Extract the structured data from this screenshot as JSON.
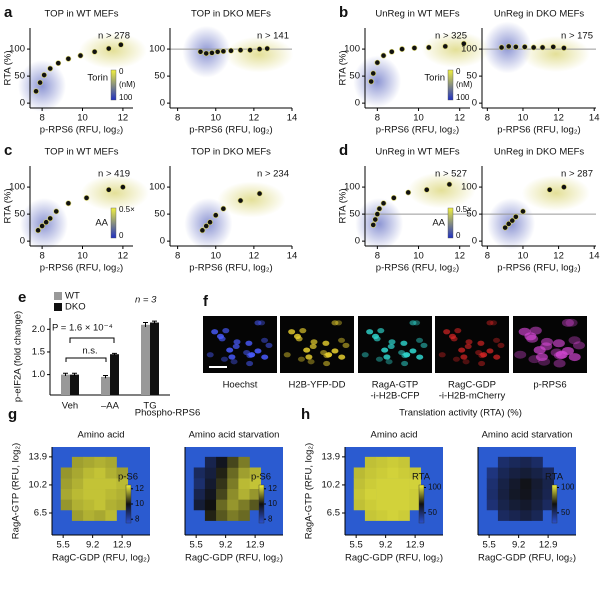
{
  "chart_data": [
    {
      "type": "scatter",
      "panel_label": "a",
      "title": "TOP in WT MEFs",
      "xlabel": "p-RPS6 (RFU, log₂)",
      "ylabel": "RTA (%)",
      "annotation": "n > 278",
      "x": [
        7.7,
        7.9,
        8.1,
        8.4,
        8.8,
        9.3,
        9.9,
        10.6,
        11.3,
        11.9
      ],
      "values": [
        22,
        38,
        52,
        64,
        74,
        82,
        88,
        95,
        101,
        108
      ],
      "color": "#111111",
      "xlim": [
        7.4,
        12.5
      ],
      "ylim": [
        -9,
        139
      ],
      "xticks": [
        8,
        10,
        12
      ],
      "yticks": [
        0,
        50,
        100
      ],
      "colorbar": {
        "title": "Torin",
        "labels": [
          "0",
          "(nM)",
          "100"
        ]
      }
    },
    {
      "type": "scatter",
      "title": "TOP in DKO MEFs",
      "xlabel": "p-RPS6 (RFU, log₂)",
      "annotation": "n > 141",
      "x": [
        9.2,
        9.5,
        9.8,
        10.1,
        10.4,
        10.8,
        11.3,
        11.8,
        12.3,
        12.7
      ],
      "values": [
        95,
        92,
        93,
        95,
        96,
        97,
        98,
        98,
        100,
        101
      ],
      "color": "#111111",
      "xlim": [
        7.6,
        14
      ],
      "ylim": [
        -9,
        139
      ],
      "xticks": [
        8,
        10,
        12,
        14
      ],
      "yticks": [
        0,
        50,
        100
      ],
      "hline": 100
    },
    {
      "type": "scatter",
      "panel_label": "b",
      "title": "UnReg in WT MEFs",
      "xlabel": "p-RPS6 (RFU, log₂)",
      "ylabel": "RTA (%)",
      "annotation": "n > 325",
      "x": [
        7.7,
        7.8,
        8.0,
        8.3,
        8.7,
        9.2,
        9.8,
        10.5,
        11.3,
        12.2
      ],
      "values": [
        40,
        55,
        75,
        88,
        95,
        100,
        102,
        103,
        105,
        110
      ],
      "color": "#111111",
      "xlim": [
        7.4,
        12.5
      ],
      "ylim": [
        -9,
        139
      ],
      "xticks": [
        8,
        10,
        12
      ],
      "yticks": [
        0,
        50,
        100
      ],
      "colorbar": {
        "title": "Torin",
        "labels": [
          "0",
          "(nM)",
          "100"
        ]
      }
    },
    {
      "type": "scatter",
      "title": "UnReg in DKO MEFs",
      "xlabel": "p-RPS6 (RFU, log₂)",
      "annotation": "n > 175",
      "x": [
        8.8,
        9.2,
        9.6,
        10.1,
        10.6,
        11.1,
        11.7,
        12.3
      ],
      "values": [
        103,
        105,
        104,
        104,
        103,
        103,
        104,
        102
      ],
      "color": "#111111",
      "xlim": [
        7.7,
        14.1
      ],
      "ylim": [
        -9,
        139
      ],
      "xticks": [
        8,
        10,
        12,
        14
      ],
      "yticks": [
        0,
        50,
        100
      ],
      "hline": 100
    },
    {
      "type": "scatter",
      "panel_label": "c",
      "title": "TOP in WT MEFs",
      "xlabel": "p-RPS6 (RFU, log₂)",
      "ylabel": "RTA (%)",
      "annotation": "n > 419",
      "x": [
        7.8,
        8.0,
        8.2,
        8.4,
        8.7,
        9.3,
        10.2,
        11.3,
        12.0
      ],
      "values": [
        20,
        28,
        35,
        42,
        55,
        70,
        80,
        95,
        100
      ],
      "color": "#111111",
      "xlim": [
        7.4,
        12.5
      ],
      "ylim": [
        -9,
        139
      ],
      "xticks": [
        8,
        10,
        12
      ],
      "yticks": [
        0,
        50,
        100
      ],
      "colorbar": {
        "title": "AA",
        "labels": [
          "0.5×",
          "0"
        ]
      }
    },
    {
      "type": "scatter",
      "title": "TOP in DKO MEFs",
      "xlabel": "p-RPS6 (RFU, log₂)",
      "annotation": "n > 234",
      "x": [
        9.3,
        9.5,
        9.7,
        10.0,
        10.4,
        11.3,
        12.3
      ],
      "values": [
        20,
        28,
        35,
        48,
        60,
        75,
        88
      ],
      "color": "#111111",
      "xlim": [
        7.6,
        14
      ],
      "ylim": [
        -9,
        139
      ],
      "xticks": [
        8,
        10,
        12,
        14
      ],
      "yticks": [
        0,
        50,
        100
      ]
    },
    {
      "type": "scatter",
      "panel_label": "d",
      "title": "UnReg in WT MEFs",
      "xlabel": "p-RPS6 (RFU, log₂)",
      "ylabel": "RTA (%)",
      "annotation": "n > 527",
      "x": [
        7.8,
        7.9,
        8.0,
        8.1,
        8.3,
        8.8,
        9.5,
        10.4,
        11.5
      ],
      "values": [
        30,
        40,
        50,
        60,
        70,
        80,
        90,
        95,
        105
      ],
      "color": "#111111",
      "xlim": [
        7.4,
        12.5
      ],
      "ylim": [
        -9,
        139
      ],
      "xticks": [
        8,
        10,
        12
      ],
      "yticks": [
        0,
        50,
        100
      ],
      "hline": 50,
      "colorbar": {
        "title": "AA",
        "labels": [
          "0.5×",
          "0"
        ]
      }
    },
    {
      "type": "scatter",
      "title": "UnReg in DKO MEFs",
      "xlabel": "p-RPS6 (RFU, log₂)",
      "annotation": "n > 287",
      "x": [
        9.0,
        9.2,
        9.4,
        9.6,
        10.0,
        11.5,
        12.3
      ],
      "values": [
        25,
        32,
        38,
        45,
        55,
        95,
        100
      ],
      "color": "#111111",
      "xlim": [
        7.7,
        14.1
      ],
      "ylim": [
        -9,
        139
      ],
      "xticks": [
        8,
        10,
        12,
        14
      ],
      "yticks": [
        0,
        50,
        100
      ],
      "hline": 50
    },
    {
      "type": "bar",
      "panel_label": "e",
      "ylabel": "p-eIF2A (fold change)",
      "annotations": [
        "n = 3",
        "P = 1.6 × 10⁻⁴",
        "n.s."
      ],
      "categories": [
        "Veh",
        "–AA",
        "TG"
      ],
      "series": [
        {
          "name": "WT",
          "color": "#999999",
          "values": [
            1.0,
            0.95,
            2.1
          ],
          "errors": [
            0.03,
            0.03,
            0.05
          ]
        },
        {
          "name": "DKO",
          "color": "#111111",
          "values": [
            1.0,
            1.45,
            2.15
          ],
          "errors": [
            0.03,
            0.02,
            0.03
          ]
        }
      ],
      "ylim": [
        0.55,
        2.25
      ],
      "yticks": [
        {
          "value": 1,
          "label": "1.0"
        },
        {
          "value": 1.5,
          "label": "1.5"
        },
        {
          "value": 2,
          "label": "2.0"
        }
      ]
    },
    {
      "type": "heatmap",
      "panel_label": "g",
      "group_title": "Phospho-RPS6",
      "title": "Amino acid",
      "xlabel": "RagC-GDP (RFU, log₂)",
      "ylabel": "RagA-GTP (RFU, log₂)",
      "x": [
        5.9,
        7.3,
        8.7,
        10.1,
        11.5,
        12.9
      ],
      "y": [
        6.2,
        7.6,
        9.0,
        10.4,
        11.8,
        13.2
      ],
      "z": [
        [
          null,
          11.6,
          11.8,
          11.7,
          11.9,
          null
        ],
        [
          11.5,
          11.8,
          11.9,
          12,
          11.8,
          11.7
        ],
        [
          11.7,
          11.9,
          12,
          12,
          11.9,
          11.8
        ],
        [
          11.6,
          11.8,
          12,
          12,
          12,
          11.9
        ],
        [
          11.5,
          11.7,
          11.9,
          12,
          11.8,
          11.6
        ],
        [
          null,
          11.6,
          11.7,
          11.8,
          11.7,
          null
        ]
      ],
      "xlim": [
        4.1,
        16.4
      ],
      "ylim": [
        3.6,
        15.2
      ],
      "xticks": [
        5.5,
        9.2,
        12.9
      ],
      "yticks": [
        6.5,
        10.2,
        13.9
      ],
      "zlim": [
        7.5,
        12.5
      ],
      "colorbar": {
        "title": "p-S6",
        "ticks": [
          8,
          10,
          12
        ]
      }
    },
    {
      "type": "heatmap",
      "title": "Amino acid starvation",
      "xlabel": "RagC-GDP (RFU, log₂)",
      "x": [
        5.9,
        7.3,
        8.7,
        10.1,
        11.5,
        12.9
      ],
      "y": [
        6.2,
        7.6,
        9.0,
        10.4,
        11.8,
        13.2
      ],
      "z": [
        [
          null,
          10.2,
          10.8,
          11.2,
          11.0,
          null
        ],
        [
          9.5,
          10.0,
          11.0,
          11.5,
          11.2,
          10.8
        ],
        [
          9.2,
          9.8,
          10.6,
          11.4,
          11.8,
          11.5
        ],
        [
          8.8,
          9.6,
          10.4,
          11.2,
          11.9,
          12.0
        ],
        [
          9.0,
          9.4,
          10.2,
          11.0,
          11.6,
          11.8
        ],
        [
          null,
          9.2,
          9.8,
          10.6,
          11.2,
          null
        ]
      ],
      "xlim": [
        4.1,
        16.4
      ],
      "ylim": [
        3.6,
        15.2
      ],
      "xticks": [
        5.5,
        9.2,
        12.9
      ],
      "zlim": [
        7.5,
        12.5
      ],
      "colorbar": {
        "title": "p-S6",
        "ticks": [
          8,
          10,
          12
        ]
      }
    },
    {
      "type": "heatmap",
      "panel_label": "h",
      "group_title": "Translation activity (RTA) (%)",
      "title": "Amino acid",
      "xlabel": "RagC-GDP (RFU, log₂)",
      "ylabel": "RagA-GTP (RFU, log₂)",
      "x": [
        5.9,
        7.3,
        8.7,
        10.1,
        11.5,
        12.9
      ],
      "y": [
        6.2,
        7.6,
        9.0,
        10.4,
        11.8,
        13.2
      ],
      "z": [
        [
          null,
          98,
          99,
          100,
          99,
          null
        ],
        [
          97,
          99,
          100,
          100,
          100,
          99
        ],
        [
          98,
          100,
          100,
          100,
          100,
          99
        ],
        [
          97,
          99,
          100,
          100,
          100,
          100
        ],
        [
          96,
          98,
          99,
          100,
          99,
          98
        ],
        [
          null,
          97,
          98,
          99,
          98,
          null
        ]
      ],
      "xlim": [
        4.1,
        16.4
      ],
      "ylim": [
        3.6,
        15.2
      ],
      "xticks": [
        5.5,
        9.2,
        12.9
      ],
      "yticks": [
        6.5,
        10.2,
        13.9
      ],
      "zlim": [
        30,
        105
      ],
      "colorbar": {
        "title": "RTA",
        "ticks": [
          50,
          100
        ]
      }
    },
    {
      "type": "heatmap",
      "title": "Amino acid starvation",
      "xlabel": "RagC-GDP (RFU, log₂)",
      "x": [
        5.9,
        7.3,
        8.7,
        10.1,
        11.5,
        12.9
      ],
      "y": [
        6.2,
        7.6,
        9.0,
        10.4,
        11.8,
        13.2
      ],
      "z": [
        [
          null,
          52,
          55,
          58,
          54,
          null
        ],
        [
          48,
          56,
          60,
          62,
          58,
          52
        ],
        [
          50,
          58,
          63,
          65,
          60,
          55
        ],
        [
          49,
          57,
          62,
          66,
          61,
          56
        ],
        [
          46,
          54,
          58,
          60,
          57,
          52
        ],
        [
          null,
          50,
          53,
          55,
          51,
          null
        ]
      ],
      "xlim": [
        4.1,
        16.4
      ],
      "ylim": [
        3.6,
        15.2
      ],
      "xticks": [
        5.5,
        9.2,
        12.9
      ],
      "zlim": [
        30,
        105
      ],
      "colorbar": {
        "title": "RTA",
        "ticks": [
          50,
          100
        ]
      }
    }
  ],
  "image_panel": {
    "label": "f",
    "images": [
      [
        "Hoechst"
      ],
      [
        "H2B-YFP-DD"
      ],
      [
        "RagA-GTP",
        "-i-H2B-CFP"
      ],
      [
        "RagC-GDP",
        "-i-H2B-mCherry"
      ],
      [
        "p-RPS6"
      ]
    ]
  }
}
